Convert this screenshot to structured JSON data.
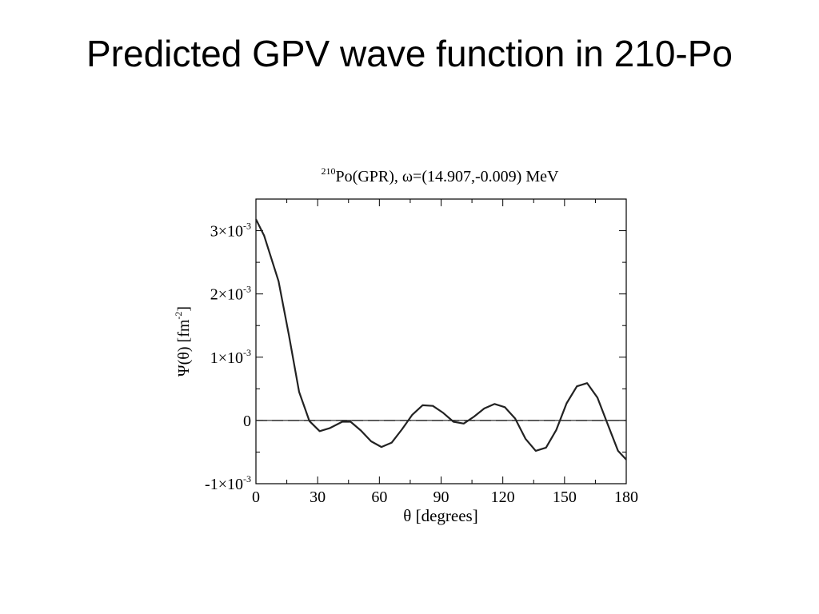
{
  "slide": {
    "title": "Predicted GPV wave function in 210-Po"
  },
  "chart_data": {
    "type": "line",
    "title_sup": "210",
    "title_main": "Po(GPR), ω=(14.907,-0.009) MeV",
    "xlabel": "θ [degrees]",
    "ylabel_main": "Ψ(θ) [fm",
    "ylabel_sup": "-2",
    "ylabel_end": "]",
    "xlim": [
      0,
      180
    ],
    "ylim": [
      -0.001,
      0.0035
    ],
    "x_ticks": [
      {
        "value": 0,
        "label": "0"
      },
      {
        "value": 30,
        "label": "30"
      },
      {
        "value": 60,
        "label": "60"
      },
      {
        "value": 90,
        "label": "90"
      },
      {
        "value": 120,
        "label": "120"
      },
      {
        "value": 150,
        "label": "150"
      },
      {
        "value": 180,
        "label": "180"
      }
    ],
    "y_ticks": [
      {
        "value": -0.001,
        "label": "-1×10",
        "sup": "-3"
      },
      {
        "value": 0,
        "label": "0",
        "sup": ""
      },
      {
        "value": 0.001,
        "label": "1×10",
        "sup": "-3"
      },
      {
        "value": 0.002,
        "label": "2×10",
        "sup": "-3"
      },
      {
        "value": 0.003,
        "label": "3×10",
        "sup": "-3"
      }
    ],
    "series": [
      {
        "style": "solid",
        "x": [
          0,
          4,
          11,
          16,
          21,
          26,
          31,
          36,
          42,
          46,
          51,
          56,
          61,
          66,
          71,
          76,
          81,
          86,
          91,
          96,
          101,
          106,
          111,
          116,
          121,
          126,
          131,
          136,
          141,
          146,
          151,
          156,
          161,
          166,
          171,
          176,
          180
        ],
        "y": [
          0.00318,
          0.00292,
          0.0022,
          0.00135,
          0.00045,
          -1e-05,
          -0.00017,
          -0.00012,
          -2e-05,
          -2e-05,
          -0.00016,
          -0.00033,
          -0.00042,
          -0.00035,
          -0.00014,
          9e-05,
          0.00024,
          0.00023,
          0.00012,
          -2e-05,
          -5e-05,
          6e-05,
          0.00019,
          0.00026,
          0.00021,
          3e-05,
          -0.00029,
          -0.00048,
          -0.00043,
          -0.00015,
          0.00027,
          0.00054,
          0.00059,
          0.00036,
          -6e-05,
          -0.00048,
          -0.00062
        ]
      },
      {
        "style": "dashed",
        "x": [
          0,
          180
        ],
        "y": [
          0,
          0
        ]
      }
    ],
    "grid": false,
    "legend": "none"
  }
}
